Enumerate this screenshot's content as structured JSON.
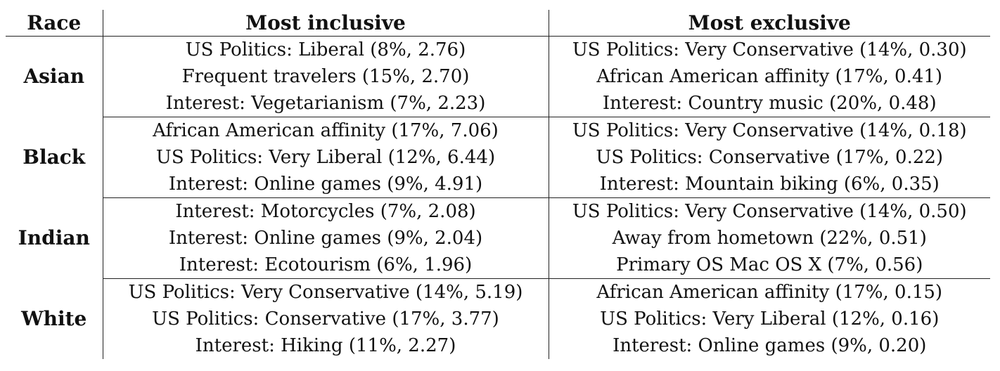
{
  "table": {
    "headers": {
      "race": "Race",
      "inclusive": "Most inclusive",
      "exclusive": "Most exclusive"
    },
    "groups": [
      {
        "race": "Asian",
        "rows": [
          {
            "inclusive": "US Politics: Liberal (8%, 2.76)",
            "exclusive": "US Politics: Very Conservative (14%, 0.30)"
          },
          {
            "inclusive": "Frequent travelers (15%, 2.70)",
            "exclusive": "African American affinity (17%, 0.41)"
          },
          {
            "inclusive": "Interest: Vegetarianism (7%, 2.23)",
            "exclusive": "Interest: Country music (20%, 0.48)"
          }
        ]
      },
      {
        "race": "Black",
        "rows": [
          {
            "inclusive": "African American affinity (17%, 7.06)",
            "exclusive": "US Politics: Very Conservative (14%, 0.18)"
          },
          {
            "inclusive": "US Politics: Very Liberal (12%, 6.44)",
            "exclusive": "US Politics: Conservative (17%, 0.22)"
          },
          {
            "inclusive": "Interest: Online games (9%, 4.91)",
            "exclusive": "Interest: Mountain biking (6%, 0.35)"
          }
        ]
      },
      {
        "race": "Indian",
        "rows": [
          {
            "inclusive": "Interest: Motorcycles (7%, 2.08)",
            "exclusive": "US Politics: Very Conservative (14%, 0.50)"
          },
          {
            "inclusive": "Interest: Online games (9%, 2.04)",
            "exclusive": "Away from hometown (22%, 0.51)"
          },
          {
            "inclusive": "Interest: Ecotourism (6%, 1.96)",
            "exclusive": "Primary OS Mac OS X (7%, 0.56)"
          }
        ]
      },
      {
        "race": "White",
        "rows": [
          {
            "inclusive": "US Politics: Very Conservative (14%, 5.19)",
            "exclusive": "African American affinity (17%, 0.15)"
          },
          {
            "inclusive": "US Politics: Conservative (17%, 3.77)",
            "exclusive": "US Politics: Very Liberal (12%, 0.16)"
          },
          {
            "inclusive": "Interest: Hiking (11%, 2.27)",
            "exclusive": "Interest: Online games (9%, 0.20)"
          }
        ]
      }
    ]
  }
}
